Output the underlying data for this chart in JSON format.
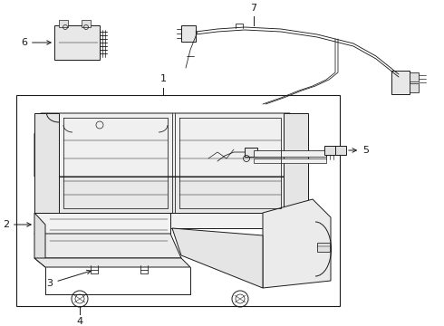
{
  "background_color": "#ffffff",
  "line_color": "#1a1a1a",
  "fig_width": 4.9,
  "fig_height": 3.6,
  "dpi": 100,
  "label_fs": 8.0,
  "lw": 0.7
}
